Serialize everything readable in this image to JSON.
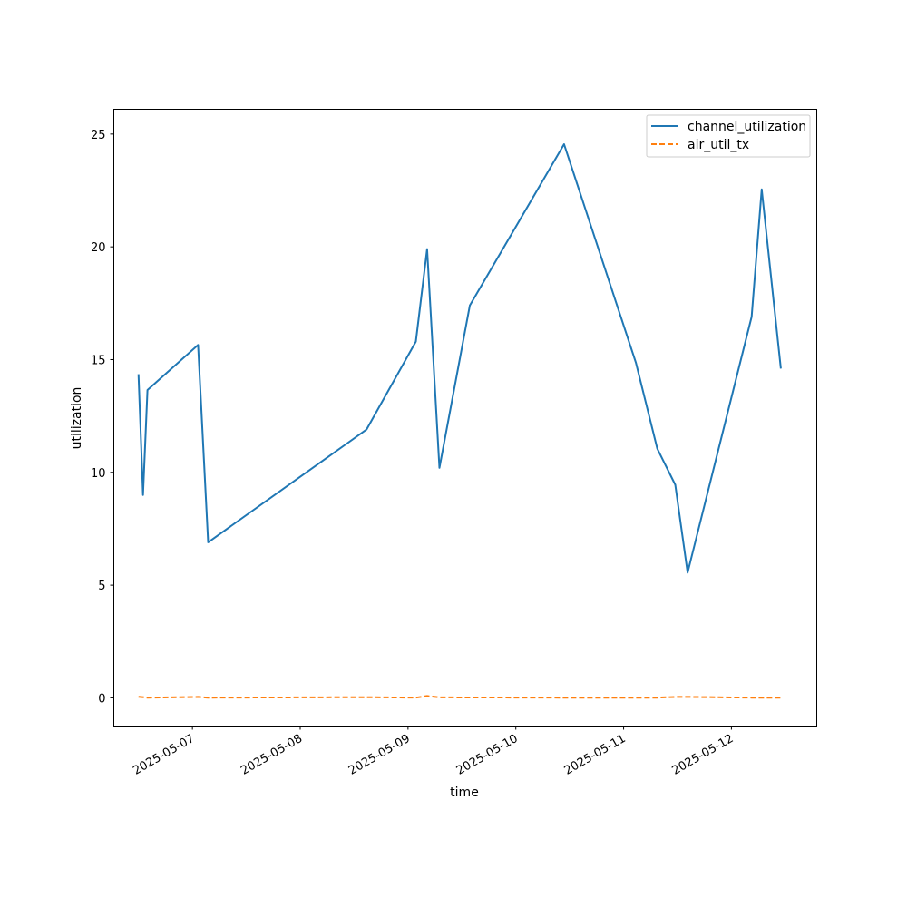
{
  "chart_data": {
    "type": "line",
    "title": "",
    "xlabel": "time",
    "ylabel": "utilization",
    "ylim": [
      -1.25,
      26.1
    ],
    "xlim": [
      "2025-05-06T06:30",
      "2025-05-12T19:00"
    ],
    "yticks": [
      0,
      5,
      10,
      15,
      20,
      25
    ],
    "xticks": [
      "2025-05-07",
      "2025-05-08",
      "2025-05-09",
      "2025-05-10",
      "2025-05-11",
      "2025-05-12"
    ],
    "grid": false,
    "legend_position": "top-right",
    "series": [
      {
        "name": "channel_utilization",
        "color": "#1f77b4",
        "style": "solid",
        "points": [
          [
            "2025-05-06T12:00",
            14.35
          ],
          [
            "2025-05-06T13:00",
            9.0
          ],
          [
            "2025-05-06T14:00",
            13.65
          ],
          [
            "2025-05-07T01:15",
            15.65
          ],
          [
            "2025-05-07T03:30",
            6.9
          ],
          [
            "2025-05-08T14:45",
            11.9
          ],
          [
            "2025-05-09T01:45",
            15.8
          ],
          [
            "2025-05-09T04:15",
            19.9
          ],
          [
            "2025-05-09T07:00",
            10.2
          ],
          [
            "2025-05-09T13:45",
            17.4
          ],
          [
            "2025-05-10T10:45",
            24.55
          ],
          [
            "2025-05-11T02:45",
            14.85
          ],
          [
            "2025-05-11T07:30",
            11.05
          ],
          [
            "2025-05-11T11:30",
            9.45
          ],
          [
            "2025-05-11T14:15",
            5.55
          ],
          [
            "2025-05-12T04:30",
            16.9
          ],
          [
            "2025-05-12T06:45",
            22.55
          ],
          [
            "2025-05-12T11:00",
            14.6
          ]
        ]
      },
      {
        "name": "air_util_tx",
        "color": "#ff7f0e",
        "style": "dashed",
        "points": [
          [
            "2025-05-06T12:00",
            0.05
          ],
          [
            "2025-05-06T14:00",
            0.01
          ],
          [
            "2025-05-07T01:15",
            0.04
          ],
          [
            "2025-05-07T03:30",
            0.01
          ],
          [
            "2025-05-08T14:45",
            0.03
          ],
          [
            "2025-05-09T01:45",
            0.01
          ],
          [
            "2025-05-09T04:15",
            0.08
          ],
          [
            "2025-05-09T07:00",
            0.02
          ],
          [
            "2025-05-10T10:45",
            0.01
          ],
          [
            "2025-05-11T07:30",
            0.01
          ],
          [
            "2025-05-11T11:30",
            0.04
          ],
          [
            "2025-05-11T14:15",
            0.04
          ],
          [
            "2025-05-12T04:30",
            0.01
          ],
          [
            "2025-05-12T11:00",
            0.01
          ]
        ]
      }
    ]
  }
}
